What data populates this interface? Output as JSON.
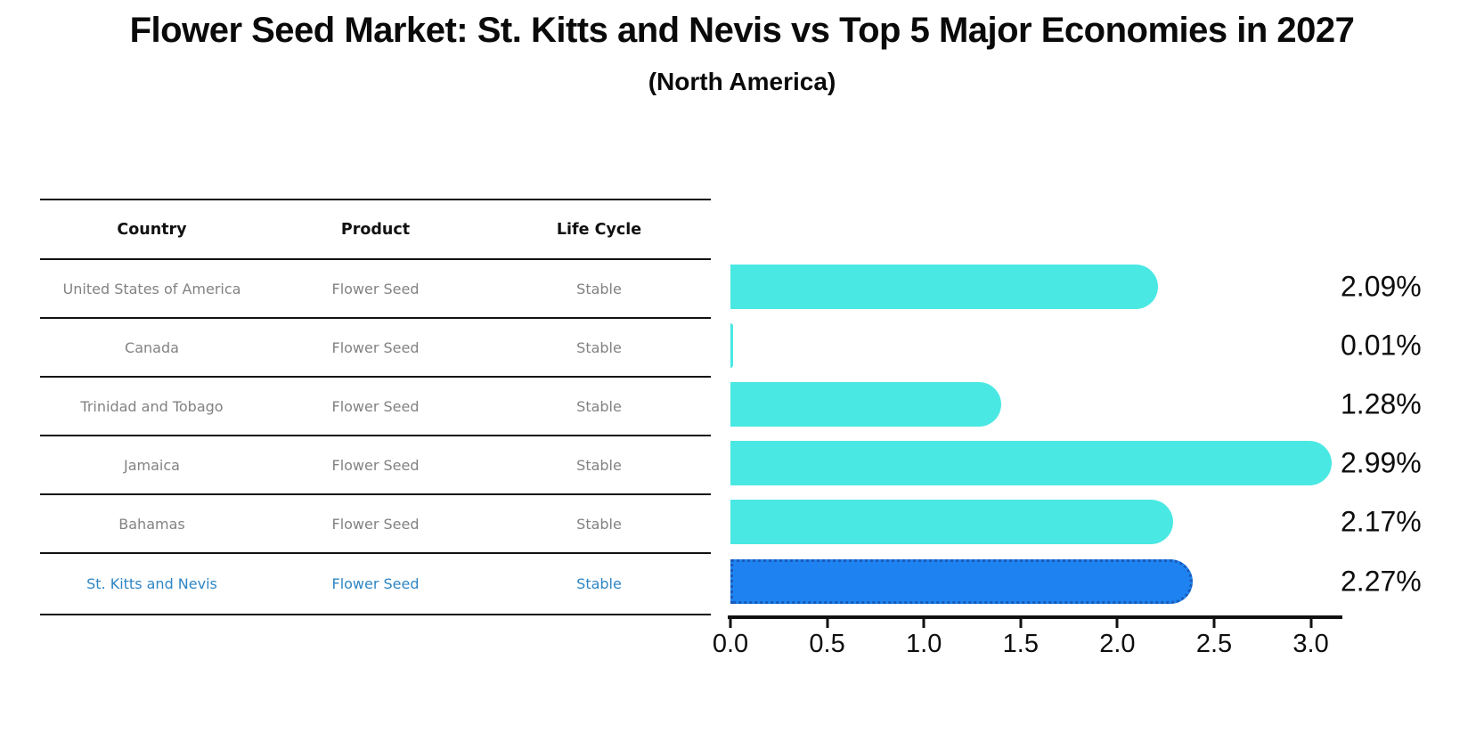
{
  "title": "Flower Seed Market: St. Kitts and Nevis vs Top 5 Major Economies in 2027",
  "subtitle": "(North America)",
  "table": {
    "headers": [
      "Country",
      "Product",
      "Life Cycle"
    ],
    "rows": [
      {
        "country": "United States of America",
        "product": "Flower Seed",
        "life_cycle": "Stable"
      },
      {
        "country": "Canada",
        "product": "Flower Seed",
        "life_cycle": "Stable"
      },
      {
        "country": "Trinidad and Tobago",
        "product": "Flower Seed",
        "life_cycle": "Stable"
      },
      {
        "country": "Jamaica",
        "product": "Flower Seed",
        "life_cycle": "Stable"
      },
      {
        "country": "Bahamas",
        "product": "Flower Seed",
        "life_cycle": "Stable"
      },
      {
        "country": "St. Kitts and Nevis",
        "product": "Flower Seed",
        "life_cycle": "Stable"
      }
    ],
    "highlighted_row": "St. Kitts and Nevis"
  },
  "chart_data": {
    "type": "bar",
    "orientation": "horizontal",
    "title": "Flower Seed Market: St. Kitts and Nevis vs Top 5 Major Economies in 2027",
    "subtitle": "(North America)",
    "categories": [
      "United States of America",
      "Canada",
      "Trinidad and Tobago",
      "Jamaica",
      "Bahamas",
      "St. Kitts and Nevis"
    ],
    "values": [
      2.09,
      0.01,
      1.28,
      2.99,
      2.17,
      2.27
    ],
    "value_labels": [
      "2.09%",
      "0.01%",
      "1.28%",
      "2.99%",
      "2.17%",
      "2.27%"
    ],
    "x_ticks": [
      "0.0",
      "0.5",
      "1.0",
      "1.5",
      "2.0",
      "2.5",
      "3.0"
    ],
    "xlim": [
      0,
      3.2
    ],
    "grid": false,
    "legend": "none",
    "bar_color": "#4ae8e3",
    "highlight_index": 5,
    "highlight_bar_color": "#1e83f0",
    "highlight_border_color": "#1a5ab9",
    "highlight_text_color": "#2e86c4"
  }
}
